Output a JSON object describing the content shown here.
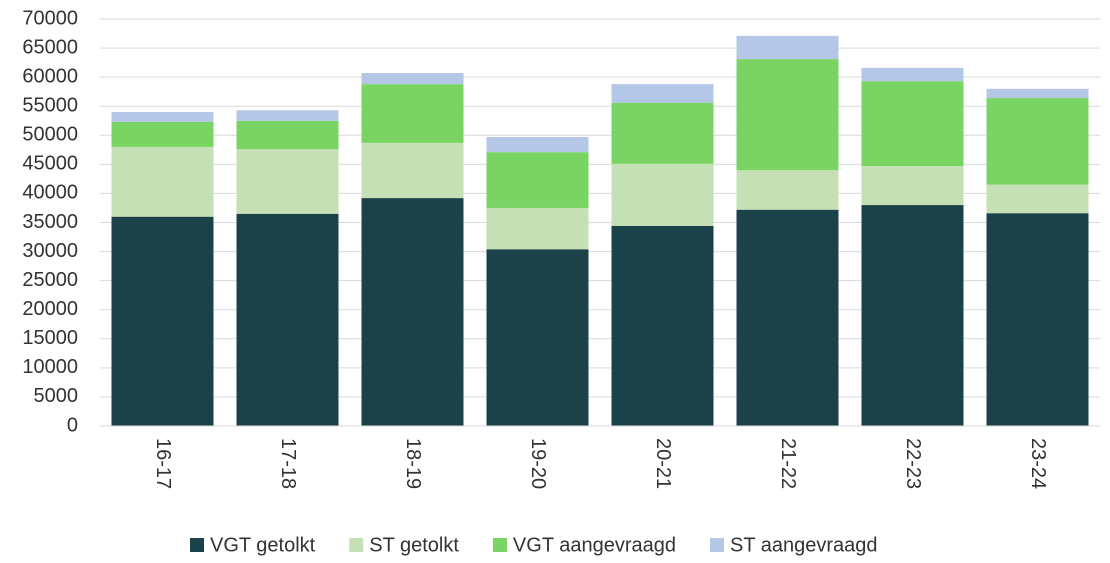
{
  "chart_data": {
    "type": "stacked-bar",
    "categories": [
      "16-17",
      "17-18",
      "18-19",
      "19-20",
      "20-21",
      "21-22",
      "22-23",
      "23-24"
    ],
    "series": [
      {
        "name": "VGT getolkt",
        "color": "#1b4249",
        "values": [
          36000,
          36500,
          39200,
          30400,
          34400,
          37200,
          38000,
          36600
        ]
      },
      {
        "name": "ST getolkt",
        "color": "#c5e0b4",
        "values": [
          12000,
          11100,
          9500,
          7100,
          10700,
          6800,
          6700,
          4900
        ]
      },
      {
        "name": "VGT aangevraagd",
        "color": "#7ad464",
        "values": [
          4300,
          4900,
          10100,
          9600,
          10500,
          19100,
          14600,
          14900
        ]
      },
      {
        "name": "ST aangevraagd",
        "color": "#b4c7e7",
        "values": [
          1700,
          1800,
          1900,
          2600,
          3200,
          4000,
          2300,
          1600
        ]
      }
    ],
    "ylim": [
      0,
      70000
    ],
    "yticks": [
      0,
      5000,
      10000,
      15000,
      20000,
      25000,
      30000,
      35000,
      40000,
      45000,
      50000,
      55000,
      60000,
      65000,
      70000
    ],
    "grid": true,
    "legend": "bottom"
  }
}
